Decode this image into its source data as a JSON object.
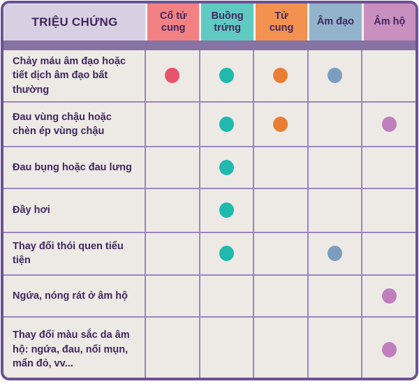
{
  "colors": {
    "frame_border": "#6C5194",
    "grid_border": "#9C85BC",
    "cell_bg": "#EDEAE6",
    "gap_bg": "#F4F2EF",
    "symptom_header_bg": "#D8CFE2",
    "band": "#8672A3",
    "text": "#41265E"
  },
  "chart_data": {
    "type": "table",
    "title": "TRIỆU CHỨNG",
    "columns": [
      {
        "label": "Cổ tử cung",
        "header_color": "#F28184",
        "dot_color": "#E9546D"
      },
      {
        "label": "Buồng trứng",
        "header_color": "#5ECAC2",
        "dot_color": "#1FB9AE"
      },
      {
        "label": "Tử cung",
        "header_color": "#F29150",
        "dot_color": "#E97E33"
      },
      {
        "label": "Âm đạo",
        "header_color": "#92B3CB",
        "dot_color": "#7B9DBE"
      },
      {
        "label": "Âm hộ",
        "header_color": "#C98FBF",
        "dot_color": "#BF7FBD"
      }
    ],
    "rows": [
      {
        "symptom": "Chảy máu âm đạo hoặc tiết dịch âm đạo bất thường",
        "marks": [
          true,
          true,
          true,
          true,
          false
        ]
      },
      {
        "symptom": "Đau vùng chậu hoặc chèn ép vùng chậu",
        "marks": [
          false,
          true,
          true,
          false,
          true
        ]
      },
      {
        "symptom": "Đau bụng hoặc đau lưng",
        "marks": [
          false,
          true,
          false,
          false,
          false
        ]
      },
      {
        "symptom": "Đầy hơi",
        "marks": [
          false,
          true,
          false,
          false,
          false
        ]
      },
      {
        "symptom": "Thay đổi thói quen tiểu tiện",
        "marks": [
          false,
          true,
          false,
          true,
          false
        ]
      },
      {
        "symptom": "Ngứa, nóng rát ở âm hộ",
        "marks": [
          false,
          false,
          false,
          false,
          true
        ]
      },
      {
        "symptom": "Thay đổi màu sắc da âm hộ: ngứa, đau, nổi mụn, mẩn đỏ, vv...",
        "marks": [
          false,
          false,
          false,
          false,
          true
        ]
      }
    ]
  }
}
